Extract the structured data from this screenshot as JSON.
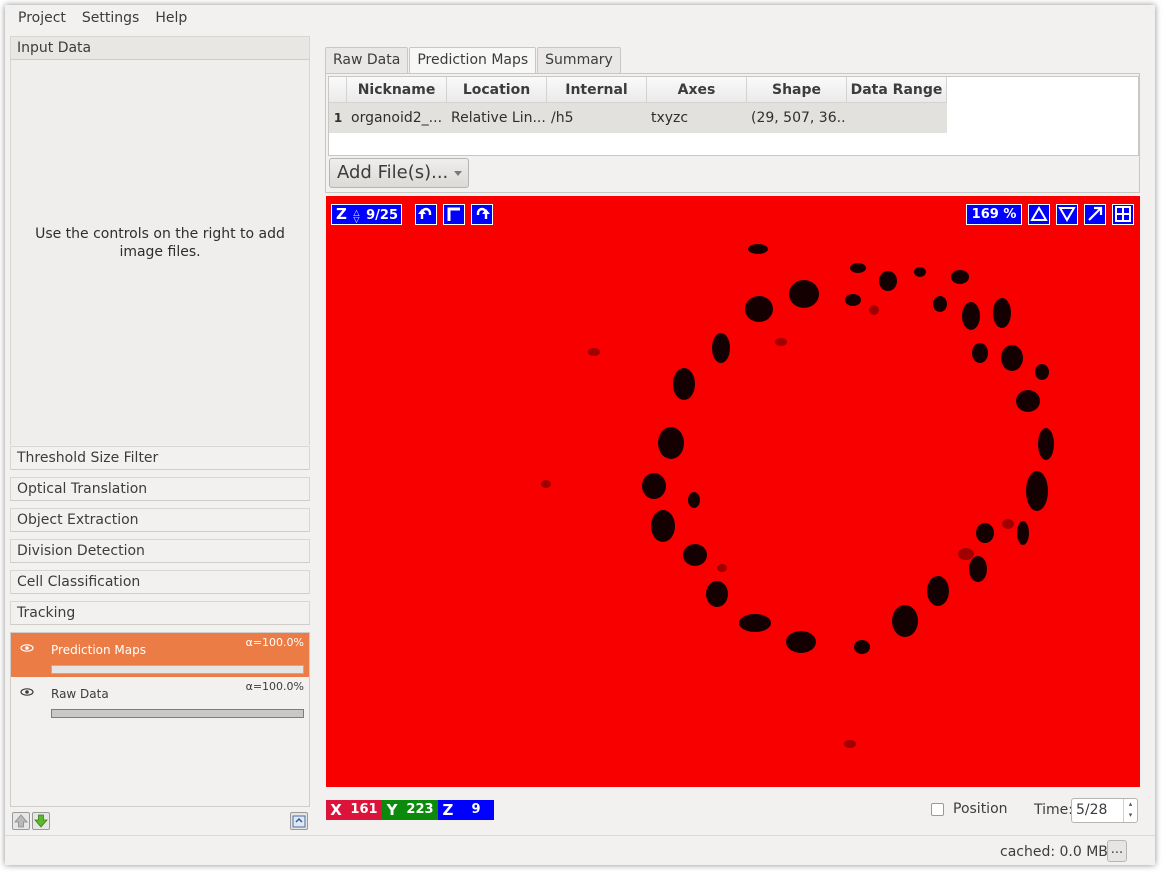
{
  "menu": [
    "Project",
    "Settings",
    "Help"
  ],
  "applets": {
    "input_data": "Input Data",
    "hint": "Use the controls on the right to add image files.",
    "items": [
      "Threshold  Size Filter",
      "Optical Translation",
      "Object Extraction",
      "Division Detection",
      "Cell Classification",
      "Tracking"
    ]
  },
  "layers": [
    {
      "name": "Prediction Maps",
      "alpha": "α=100.0%",
      "selected": true
    },
    {
      "name": "Raw Data",
      "alpha": "α=100.0%",
      "selected": false
    }
  ],
  "tabs": [
    "Raw Data",
    "Prediction Maps",
    "Summary"
  ],
  "active_tab": "Prediction Maps",
  "table": {
    "headers": [
      "Nickname",
      "Location",
      "Internal Path",
      "Axes",
      "Shape",
      "Data Range"
    ],
    "rows": [
      {
        "num": "1",
        "nickname": "organoid2_...",
        "location": "Relative Lin...",
        "internal_path": "/h5",
        "axes": "txyzc",
        "shape": "(29, 507, 36...",
        "data_range": ""
      }
    ]
  },
  "add_files": "Add File(s)...",
  "viewer": {
    "slice_axis": "Z",
    "slice": "9/25",
    "zoom": "169 %",
    "background_color": "#f90000",
    "button_color": "#0000ff"
  },
  "coords": [
    {
      "axis": "X",
      "value": "161",
      "color": "#dc143c"
    },
    {
      "axis": "Y",
      "value": "223",
      "color": "#0b8a0b"
    },
    {
      "axis": "Z",
      "value": "9",
      "color": "#0000ff"
    }
  ],
  "position_label": "Position",
  "time_label": "Time:",
  "time_value": "5/28",
  "status": {
    "cached": "cached: 0.0 MB",
    "more": "..."
  }
}
